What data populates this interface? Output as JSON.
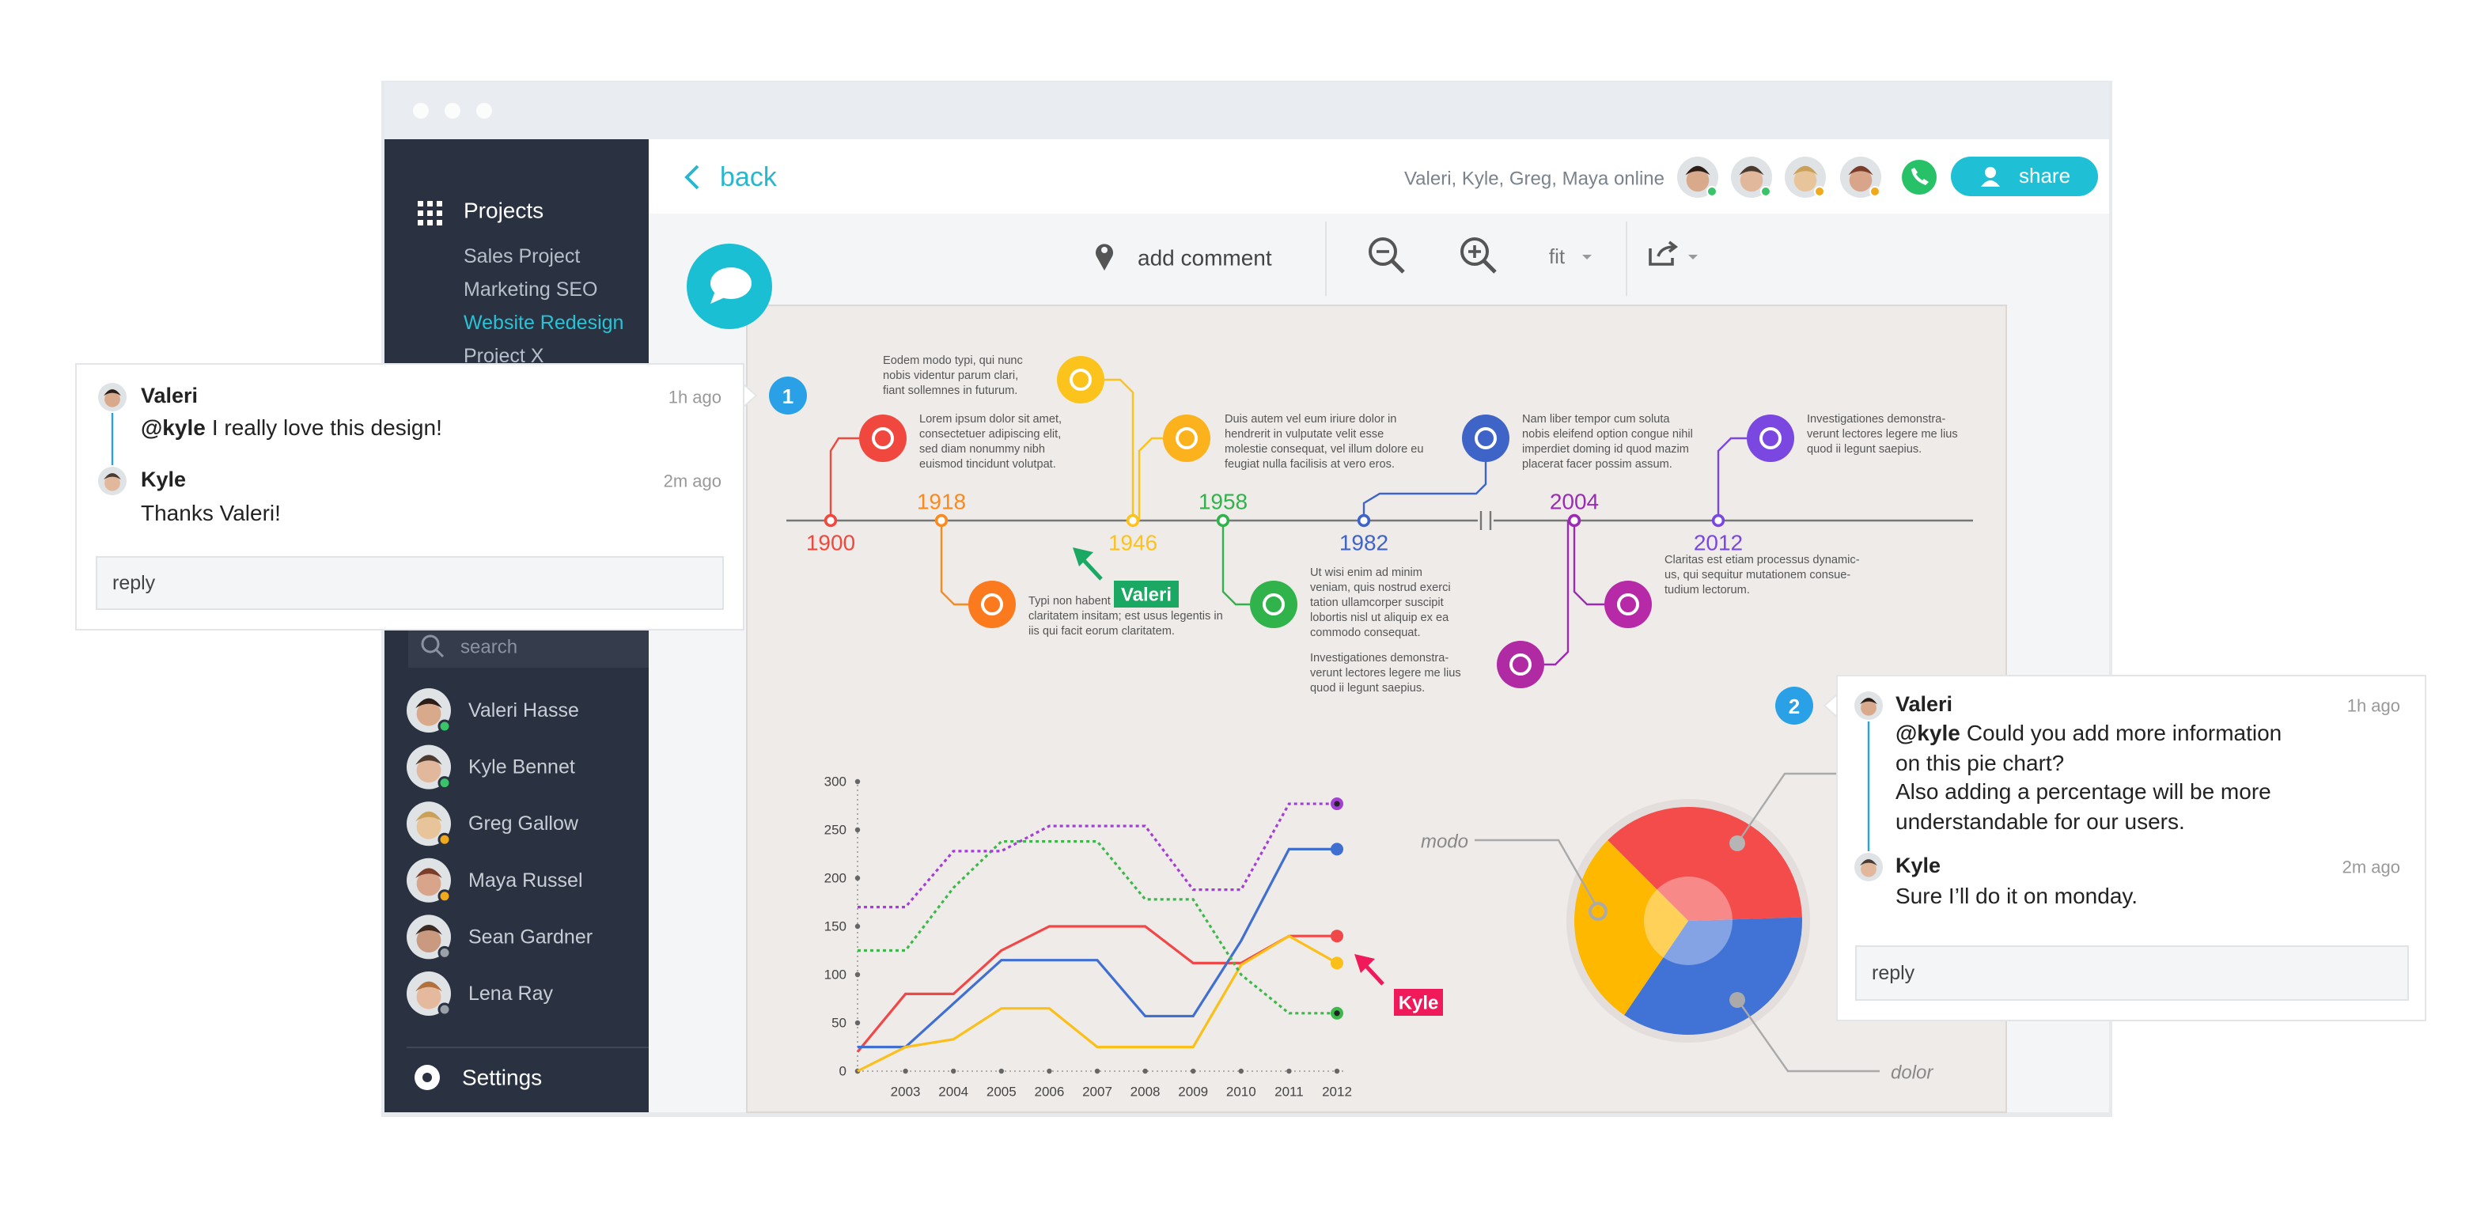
{
  "sidebar": {
    "title": "Projects",
    "projects": [
      "Sales Project",
      "Marketing SEO",
      "Website Redesign",
      "Project X"
    ],
    "search": "search",
    "contacts": [
      "Valeri Hasse",
      "Kyle Bennet",
      "Greg Gallow",
      "Maya Russel",
      "Sean Gardner",
      "Lena Ray"
    ],
    "settings": "Settings"
  },
  "header": {
    "back": "back",
    "online": "Valeri, Kyle, Greg, Maya online",
    "share": "share"
  },
  "toolbar": {
    "add_comment": "add comment",
    "zoom": "fit"
  },
  "timeline": {
    "years": [
      "1900",
      "1918",
      "1946",
      "1958",
      "1982",
      "2004",
      "2012"
    ],
    "notes": [
      {
        "lines": [
          "Lorem ipsum dolor sit amet,",
          "consectetuer adipiscing elit,",
          "sed diam nonummy nibh",
          "euismod tincidunt volutpat."
        ]
      },
      {
        "lines": [
          "Eodem modo typi, qui nunc",
          "nobis videntur parum clari,",
          "fiant sollemnes in futurum."
        ]
      },
      {
        "lines": [
          "Duis autem vel eum iriure dolor in",
          "hendrerit in vulputate velit esse",
          "molestie consequat, vel illum dolore eu",
          "feugiat nulla facilisis at vero eros."
        ]
      },
      {
        "lines": [
          "Nam liber tempor cum soluta",
          "nobis eleifend option congue nihil",
          "imperdiet doming id quod mazim",
          "placerat facer possim assum."
        ]
      },
      {
        "lines": [
          "Investigationes demonstra-",
          "verunt lectores legere me lius",
          "quod ii legunt saepius."
        ]
      },
      {
        "lines": [
          "Typi non habent",
          "claritatem insitam; est usus legentis in",
          "iis qui facit eorum claritatem."
        ]
      },
      {
        "lines": [
          "Ut wisi enim ad minim",
          "veniam, quis nostrud exerci",
          "tation ullamcorper suscipit",
          "lobortis nisl ut aliquip ex ea",
          "commodo consequat."
        ]
      },
      {
        "lines": [
          "Investigationes demonstra-",
          "verunt lectores legere me lius",
          "quod ii legunt saepius."
        ]
      },
      {
        "lines": [
          "Claritas est etiam processus dynamic-",
          "us, qui sequitur mutationem consue-",
          "tudium lectorum."
        ]
      }
    ]
  },
  "cursors": [
    "Valeri",
    "Kyle"
  ],
  "comments": [
    {
      "badge": 1,
      "messages": [
        {
          "author": "Valeri",
          "time": "1h ago",
          "mention": "@kyle",
          "lines": [
            "I really love this design!"
          ]
        },
        {
          "author": "Kyle",
          "time": "2m ago",
          "lines": [
            "Thanks Valeri!"
          ]
        }
      ],
      "reply": "reply"
    },
    {
      "badge": 2,
      "messages": [
        {
          "author": "Valeri",
          "time": "1h ago",
          "mention": "@kyle",
          "lines": [
            "Could you add more information",
            "on this pie chart?",
            "Also adding a percentage will be more",
            "understandable for our users."
          ]
        },
        {
          "author": "Kyle",
          "time": "2m ago",
          "lines": [
            "Sure I’ll do it on monday."
          ]
        }
      ],
      "reply": "reply"
    }
  ],
  "chart_data": [
    {
      "type": "line",
      "categories": [
        null,
        "2003",
        "2004",
        "2005",
        "2006",
        "2007",
        "2008",
        "2009",
        "2010",
        "2011",
        "2012"
      ],
      "ylim": [
        0,
        300
      ],
      "yticks": [
        0,
        50,
        100,
        150,
        200,
        250,
        300
      ],
      "series": [
        {
          "color": "#f04848",
          "dashed": false,
          "values": [
            20,
            80,
            80,
            125,
            150,
            150,
            150,
            112,
            112,
            140,
            140
          ]
        },
        {
          "color": "#3f6fd1",
          "dashed": false,
          "values": [
            25,
            25,
            70,
            115,
            115,
            115,
            57,
            57,
            135,
            230,
            230
          ]
        },
        {
          "color": "#fbbf1a",
          "dashed": false,
          "values": [
            0,
            25,
            33,
            65,
            65,
            25,
            25,
            25,
            110,
            140,
            112
          ]
        },
        {
          "color": "#3db84a",
          "dashed": true,
          "values": [
            125,
            125,
            190,
            238,
            238,
            238,
            178,
            178,
            100,
            60,
            60
          ]
        },
        {
          "color": "#a43fd6",
          "dashed": true,
          "values": [
            170,
            170,
            228,
            228,
            254,
            254,
            254,
            188,
            188,
            277,
            277
          ]
        }
      ]
    },
    {
      "type": "pie",
      "values": [
        37,
        35,
        28
      ],
      "colors": [
        "#f44b4b",
        "#4172d6",
        "#ffb800"
      ],
      "annotations": [
        "modo",
        "dolor"
      ]
    }
  ]
}
